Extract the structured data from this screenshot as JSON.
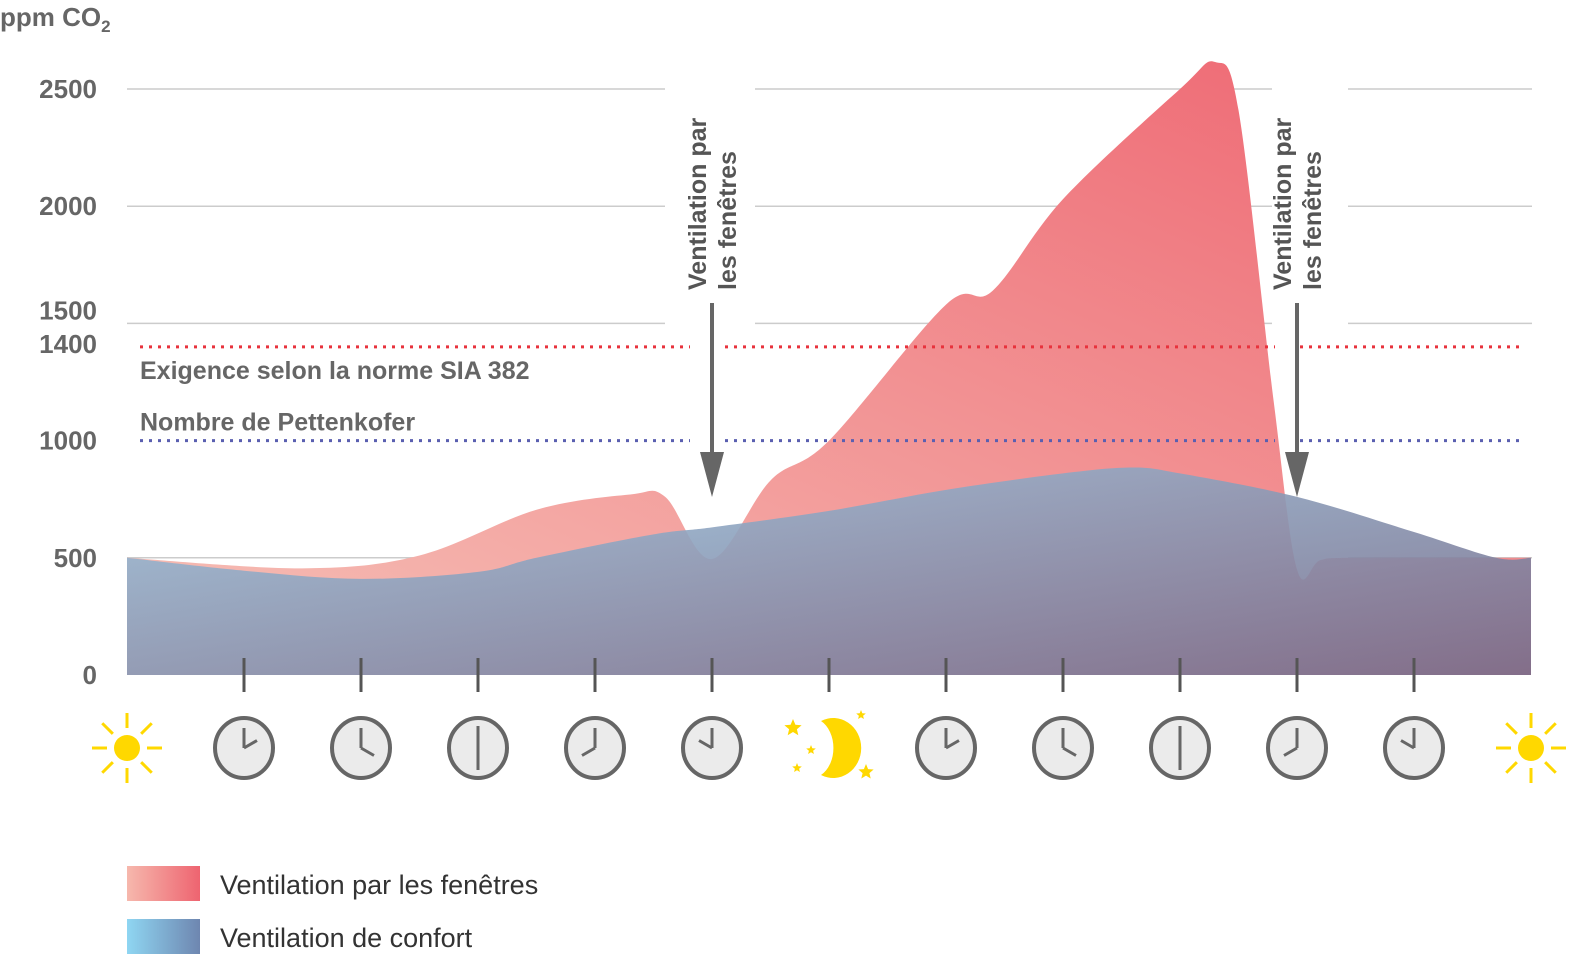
{
  "chart_data": {
    "type": "area",
    "ylabel": "ppm CO",
    "ylabel_sub": "2",
    "ylim": [
      0,
      2600
    ],
    "yticks": [
      0,
      500,
      1000,
      1400,
      1500,
      2000,
      2500
    ],
    "ytick_labels": [
      "0",
      "500",
      "1000",
      "1400",
      "1500",
      "2000",
      "2500"
    ],
    "grid": true,
    "x_icons": [
      "sun",
      "clock-2",
      "clock-4",
      "clock-6",
      "clock-8",
      "clock-10",
      "moon-stars",
      "clock-2",
      "clock-4",
      "clock-6",
      "clock-8",
      "clock-10",
      "sun"
    ],
    "reference_lines": [
      {
        "label": "Exigence selon la norme SIA 382",
        "value": 1400,
        "color": "#e8323c"
      },
      {
        "label": "Nombre de Pettenkofer",
        "value": 1000,
        "color": "#5a5fb0"
      }
    ],
    "annotations": [
      {
        "line1": "Ventilation par",
        "line2": "les fenêtres",
        "x": 5
      },
      {
        "line1": "Ventilation par",
        "line2": "les fenêtres",
        "x": 10
      }
    ],
    "series": [
      {
        "name": "Ventilation par les fenêtres",
        "color_start": "#f6b8ad",
        "color_end": "#ee6470",
        "x": [
          0,
          1.5,
          2.5,
          3.5,
          4.3,
          4.6,
          5,
          5.5,
          6,
          7,
          7.4,
          8,
          9,
          9.3,
          9.5,
          9.8,
          10,
          10.2,
          10.5,
          12
        ],
        "values": [
          500,
          455,
          510,
          705,
          770,
          760,
          495,
          830,
          1000,
          1580,
          1640,
          2030,
          2500,
          2615,
          2410,
          1170,
          450,
          490,
          500,
          500
        ]
      },
      {
        "name": "Ventilation de confort",
        "color_start": "#8fd0ee",
        "color_end": "#6e7fa8",
        "x": [
          0,
          1,
          2,
          3,
          3.5,
          4.5,
          5,
          6,
          7,
          8,
          8.6,
          9,
          10,
          11,
          11.7,
          12
        ],
        "values": [
          500,
          445,
          410,
          440,
          500,
          600,
          630,
          700,
          790,
          860,
          885,
          860,
          760,
          610,
          500,
          500
        ]
      }
    ],
    "legend_placement": "bottom-left"
  }
}
